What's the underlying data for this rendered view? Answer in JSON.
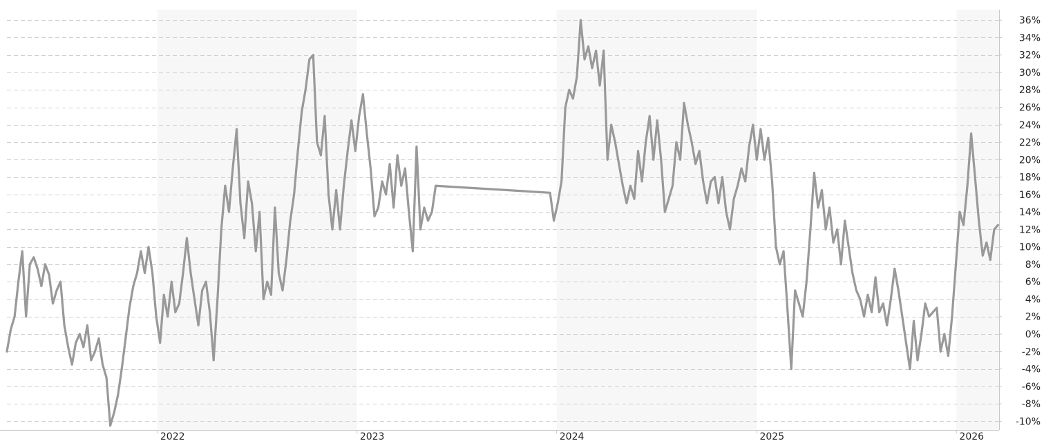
{
  "colors": {
    "background": "#ffffff",
    "band_fill": "#f7f7f7",
    "grid": "#cfcfcf",
    "axis": "#c8c8c8",
    "series": "#999999",
    "text": "#222222"
  },
  "chart_data": {
    "type": "line",
    "title": "",
    "xlabel": "",
    "ylabel": "",
    "ylim": [
      -11,
      37.2
    ],
    "y_ticks": [
      -10,
      -8,
      -6,
      -4,
      -2,
      0,
      2,
      4,
      6,
      8,
      10,
      12,
      14,
      16,
      18,
      20,
      22,
      24,
      26,
      28,
      30,
      32,
      34,
      36
    ],
    "y_tick_labels": [
      "-10%",
      "-8%",
      "-6%",
      "-4%",
      "-2%",
      "0%",
      "2%",
      "4%",
      "6%",
      "8%",
      "10%",
      "12%",
      "14%",
      "16%",
      "18%",
      "20%",
      "22%",
      "24%",
      "26%",
      "28%",
      "30%",
      "32%",
      "34%",
      "36%"
    ],
    "y_axis_position": "right",
    "grid": true,
    "legend": "none",
    "xlim": [
      "2021-04-01",
      "2026-03-20"
    ],
    "x_ticks": [
      "2022-01-01",
      "2023-01-01",
      "2024-01-01",
      "2025-01-01",
      "2026-01-01"
    ],
    "x_tick_labels": [
      "2022",
      "2023",
      "2024",
      "2025",
      "2026"
    ],
    "shaded_years": [
      [
        "2022-01-01",
        "2023-01-01"
      ],
      [
        "2024-01-01",
        "2025-01-01"
      ],
      [
        "2026-01-01",
        "2026-03-20"
      ]
    ],
    "series": [
      {
        "points": [
          [
            "2021-04-01",
            -2
          ],
          [
            "2021-04-08",
            0.5
          ],
          [
            "2021-04-15",
            2
          ],
          [
            "2021-04-22",
            6
          ],
          [
            "2021-04-29",
            9.5
          ],
          [
            "2021-05-06",
            2
          ],
          [
            "2021-05-13",
            8
          ],
          [
            "2021-05-20",
            8.8
          ],
          [
            "2021-05-27",
            7.5
          ],
          [
            "2021-06-03",
            5.5
          ],
          [
            "2021-06-10",
            8
          ],
          [
            "2021-06-17",
            6.8
          ],
          [
            "2021-06-24",
            3.5
          ],
          [
            "2021-07-01",
            5
          ],
          [
            "2021-07-08",
            6
          ],
          [
            "2021-07-15",
            1
          ],
          [
            "2021-07-22",
            -1.5
          ],
          [
            "2021-07-29",
            -3.5
          ],
          [
            "2021-08-05",
            -1
          ],
          [
            "2021-08-12",
            0
          ],
          [
            "2021-08-19",
            -1.5
          ],
          [
            "2021-08-26",
            1
          ],
          [
            "2021-09-02",
            -3
          ],
          [
            "2021-09-09",
            -2
          ],
          [
            "2021-09-16",
            -0.5
          ],
          [
            "2021-09-23",
            -3.5
          ],
          [
            "2021-09-30",
            -5
          ],
          [
            "2021-10-07",
            -10.5
          ],
          [
            "2021-10-14",
            -9
          ],
          [
            "2021-10-21",
            -7
          ],
          [
            "2021-10-28",
            -4
          ],
          [
            "2021-11-04",
            -0.5
          ],
          [
            "2021-11-11",
            3
          ],
          [
            "2021-11-18",
            5.5
          ],
          [
            "2021-11-25",
            7
          ],
          [
            "2021-12-02",
            9.5
          ],
          [
            "2021-12-09",
            7
          ],
          [
            "2021-12-16",
            10
          ],
          [
            "2021-12-23",
            7
          ],
          [
            "2021-12-30",
            2
          ],
          [
            "2022-01-06",
            -1
          ],
          [
            "2022-01-13",
            4.5
          ],
          [
            "2022-01-20",
            2
          ],
          [
            "2022-01-27",
            6
          ],
          [
            "2022-02-03",
            2.5
          ],
          [
            "2022-02-10",
            3.5
          ],
          [
            "2022-02-17",
            7
          ],
          [
            "2022-02-24",
            11
          ],
          [
            "2022-03-03",
            7
          ],
          [
            "2022-03-10",
            4
          ],
          [
            "2022-03-17",
            1
          ],
          [
            "2022-03-24",
            5
          ],
          [
            "2022-03-31",
            6
          ],
          [
            "2022-04-07",
            2.5
          ],
          [
            "2022-04-14",
            -3
          ],
          [
            "2022-04-21",
            4
          ],
          [
            "2022-04-28",
            12
          ],
          [
            "2022-05-05",
            17
          ],
          [
            "2022-05-12",
            14
          ],
          [
            "2022-05-19",
            19
          ],
          [
            "2022-05-26",
            23.5
          ],
          [
            "2022-06-02",
            15
          ],
          [
            "2022-06-09",
            11
          ],
          [
            "2022-06-16",
            17.5
          ],
          [
            "2022-06-23",
            15
          ],
          [
            "2022-06-30",
            9.5
          ],
          [
            "2022-07-07",
            14
          ],
          [
            "2022-07-14",
            4
          ],
          [
            "2022-07-21",
            6
          ],
          [
            "2022-07-28",
            4.5
          ],
          [
            "2022-08-04",
            14.5
          ],
          [
            "2022-08-11",
            7
          ],
          [
            "2022-08-18",
            5
          ],
          [
            "2022-08-25",
            8.5
          ],
          [
            "2022-09-01",
            13
          ],
          [
            "2022-09-08",
            16
          ],
          [
            "2022-09-15",
            21
          ],
          [
            "2022-09-22",
            25.5
          ],
          [
            "2022-09-29",
            28
          ],
          [
            "2022-10-06",
            31.5
          ],
          [
            "2022-10-13",
            32
          ],
          [
            "2022-10-20",
            22
          ],
          [
            "2022-10-27",
            20.5
          ],
          [
            "2022-11-03",
            25
          ],
          [
            "2022-11-10",
            16
          ],
          [
            "2022-11-17",
            12
          ],
          [
            "2022-11-24",
            16.5
          ],
          [
            "2022-12-01",
            12
          ],
          [
            "2022-12-08",
            17
          ],
          [
            "2022-12-15",
            21
          ],
          [
            "2022-12-22",
            24.5
          ],
          [
            "2022-12-29",
            21
          ],
          [
            "2023-01-05",
            25
          ],
          [
            "2023-01-12",
            27.5
          ],
          [
            "2023-01-19",
            23
          ],
          [
            "2023-01-26",
            19
          ],
          [
            "2023-02-02",
            13.5
          ],
          [
            "2023-02-09",
            14.5
          ],
          [
            "2023-02-16",
            17.5
          ],
          [
            "2023-02-23",
            16
          ],
          [
            "2023-03-02",
            19.5
          ],
          [
            "2023-03-09",
            14.5
          ],
          [
            "2023-03-16",
            20.5
          ],
          [
            "2023-03-23",
            17
          ],
          [
            "2023-03-30",
            19
          ],
          [
            "2023-04-06",
            14
          ],
          [
            "2023-04-13",
            9.5
          ],
          [
            "2023-04-20",
            21.5
          ],
          [
            "2023-04-27",
            12
          ],
          [
            "2023-05-04",
            14.5
          ],
          [
            "2023-05-11",
            13
          ],
          [
            "2023-05-18",
            14
          ],
          [
            "2023-05-25",
            17
          ],
          [
            "2023-12-20",
            16.2
          ],
          [
            "2023-12-27",
            13
          ],
          [
            "2024-01-03",
            15
          ],
          [
            "2024-01-10",
            17.5
          ],
          [
            "2024-01-17",
            26
          ],
          [
            "2024-01-24",
            28
          ],
          [
            "2024-01-31",
            27
          ],
          [
            "2024-02-07",
            29.5
          ],
          [
            "2024-02-14",
            36
          ],
          [
            "2024-02-21",
            31.5
          ],
          [
            "2024-02-28",
            33
          ],
          [
            "2024-03-06",
            30.5
          ],
          [
            "2024-03-13",
            32.5
          ],
          [
            "2024-03-20",
            28.5
          ],
          [
            "2024-03-27",
            32.5
          ],
          [
            "2024-04-03",
            20
          ],
          [
            "2024-04-10",
            24
          ],
          [
            "2024-04-17",
            22
          ],
          [
            "2024-04-24",
            19.5
          ],
          [
            "2024-05-01",
            17
          ],
          [
            "2024-05-08",
            15
          ],
          [
            "2024-05-15",
            17
          ],
          [
            "2024-05-22",
            15.5
          ],
          [
            "2024-05-29",
            21
          ],
          [
            "2024-06-05",
            17.5
          ],
          [
            "2024-06-12",
            22
          ],
          [
            "2024-06-19",
            25
          ],
          [
            "2024-06-26",
            20
          ],
          [
            "2024-07-03",
            24.5
          ],
          [
            "2024-07-10",
            20
          ],
          [
            "2024-07-17",
            14
          ],
          [
            "2024-07-24",
            15.5
          ],
          [
            "2024-07-31",
            17
          ],
          [
            "2024-08-07",
            22
          ],
          [
            "2024-08-14",
            20
          ],
          [
            "2024-08-21",
            26.5
          ],
          [
            "2024-08-28",
            24
          ],
          [
            "2024-09-04",
            22
          ],
          [
            "2024-09-11",
            19.5
          ],
          [
            "2024-09-18",
            21
          ],
          [
            "2024-09-25",
            17.5
          ],
          [
            "2024-10-02",
            15
          ],
          [
            "2024-10-09",
            17.5
          ],
          [
            "2024-10-16",
            18
          ],
          [
            "2024-10-23",
            15
          ],
          [
            "2024-10-30",
            18
          ],
          [
            "2024-11-06",
            14
          ],
          [
            "2024-11-13",
            12
          ],
          [
            "2024-11-20",
            15.5
          ],
          [
            "2024-11-27",
            17
          ],
          [
            "2024-12-04",
            19
          ],
          [
            "2024-12-11",
            17.5
          ],
          [
            "2024-12-18",
            21.5
          ],
          [
            "2024-12-25",
            24
          ],
          [
            "2025-01-01",
            20
          ],
          [
            "2025-01-08",
            23.5
          ],
          [
            "2025-01-15",
            20
          ],
          [
            "2025-01-22",
            22.5
          ],
          [
            "2025-01-29",
            17.5
          ],
          [
            "2025-02-05",
            10
          ],
          [
            "2025-02-12",
            8
          ],
          [
            "2025-02-19",
            9.5
          ],
          [
            "2025-02-26",
            3
          ],
          [
            "2025-03-05",
            -4
          ],
          [
            "2025-03-12",
            5
          ],
          [
            "2025-03-19",
            3.5
          ],
          [
            "2025-03-26",
            2
          ],
          [
            "2025-04-02",
            6
          ],
          [
            "2025-04-09",
            12
          ],
          [
            "2025-04-16",
            18.5
          ],
          [
            "2025-04-23",
            14.5
          ],
          [
            "2025-04-30",
            16.5
          ],
          [
            "2025-05-07",
            12
          ],
          [
            "2025-05-14",
            14.5
          ],
          [
            "2025-05-21",
            10.5
          ],
          [
            "2025-05-28",
            12
          ],
          [
            "2025-06-04",
            8
          ],
          [
            "2025-06-11",
            13
          ],
          [
            "2025-06-18",
            10
          ],
          [
            "2025-06-25",
            7
          ],
          [
            "2025-07-02",
            5
          ],
          [
            "2025-07-09",
            4
          ],
          [
            "2025-07-16",
            2
          ],
          [
            "2025-07-23",
            4.5
          ],
          [
            "2025-07-30",
            2.5
          ],
          [
            "2025-08-06",
            6.5
          ],
          [
            "2025-08-13",
            2.5
          ],
          [
            "2025-08-20",
            3.5
          ],
          [
            "2025-08-27",
            1
          ],
          [
            "2025-09-03",
            4
          ],
          [
            "2025-09-10",
            7.5
          ],
          [
            "2025-09-17",
            5
          ],
          [
            "2025-09-24",
            2
          ],
          [
            "2025-10-01",
            -1
          ],
          [
            "2025-10-08",
            -4
          ],
          [
            "2025-10-15",
            1.5
          ],
          [
            "2025-10-22",
            -3
          ],
          [
            "2025-10-29",
            0
          ],
          [
            "2025-11-05",
            3.5
          ],
          [
            "2025-11-12",
            2
          ],
          [
            "2025-11-19",
            2.5
          ],
          [
            "2025-11-26",
            3
          ],
          [
            "2025-12-03",
            -2
          ],
          [
            "2025-12-10",
            0
          ],
          [
            "2025-12-17",
            -2.5
          ],
          [
            "2025-12-24",
            2
          ],
          [
            "2025-12-31",
            8
          ],
          [
            "2026-01-07",
            14
          ],
          [
            "2026-01-14",
            12.5
          ],
          [
            "2026-01-21",
            17
          ],
          [
            "2026-01-28",
            23
          ],
          [
            "2026-02-04",
            18
          ],
          [
            "2026-02-11",
            13
          ],
          [
            "2026-02-18",
            9
          ],
          [
            "2026-02-25",
            10.5
          ],
          [
            "2026-03-04",
            8.5
          ],
          [
            "2026-03-11",
            12
          ],
          [
            "2026-03-18",
            12.5
          ]
        ]
      }
    ]
  }
}
